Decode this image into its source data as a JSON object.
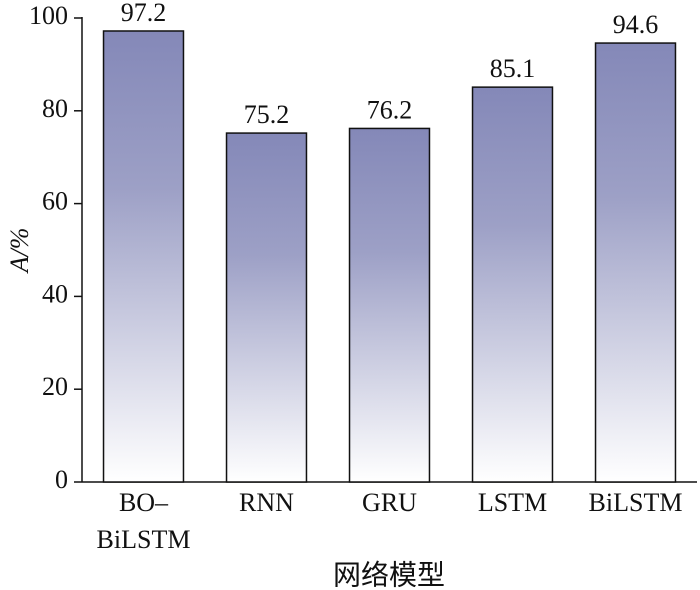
{
  "chart_data": {
    "type": "bar",
    "categories": [
      "BO–BiLSTM",
      "RNN",
      "GRU",
      "LSTM",
      "BiLSTM"
    ],
    "values": [
      97.2,
      75.2,
      76.2,
      85.1,
      94.6
    ],
    "color": "#8488b8",
    "ylim": [
      0,
      100
    ],
    "yticks": [
      0,
      20,
      40,
      60,
      80,
      100
    ],
    "ylabel": "A/%",
    "xlabel": "网络模型",
    "grid": false
  }
}
